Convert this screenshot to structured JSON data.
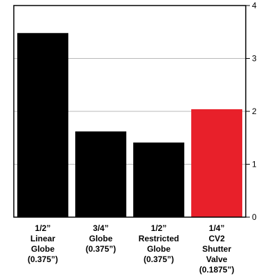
{
  "chart_data": {
    "type": "bar",
    "categories": [
      [
        "1/2”",
        "Linear",
        "Globe",
        "(0.375”)"
      ],
      [
        "3/4”",
        "Globe",
        "(0.375”)"
      ],
      [
        "1/2”",
        "Restricted",
        "Globe",
        "(0.375”)"
      ],
      [
        "1/4”",
        "CV2",
        "Shutter",
        "Valve",
        "(0.1875”)"
      ]
    ],
    "values": [
      3.48,
      1.62,
      1.41,
      2.04
    ],
    "bar_colors": [
      "#000000",
      "#000000",
      "#000000",
      "#e8202a"
    ],
    "ylim": [
      0,
      4
    ],
    "yticks": [
      0,
      1,
      2,
      3,
      4
    ],
    "ytick_labels": [
      "0",
      "1",
      "2",
      "3",
      "4"
    ],
    "y_axis_side": "right",
    "grid": "horizontal",
    "title": "",
    "xlabel": "",
    "ylabel": ""
  }
}
